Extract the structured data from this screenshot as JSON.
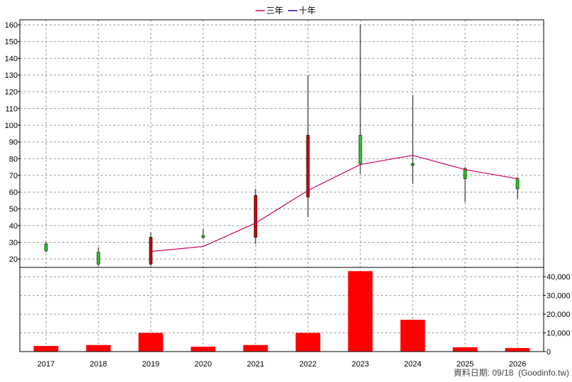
{
  "legend": {
    "series3_label": "三年",
    "series10_label": "十年"
  },
  "footer": {
    "date_label": "資料日期: 09/18",
    "source": "(Goodinfo.tw)"
  },
  "colors": {
    "ma3": "#cc0066",
    "ma10": "#3300aa",
    "candle_up": "#cc0000",
    "candle_down": "#22cc22",
    "volume": "#ff0000",
    "grid": "#999999"
  },
  "chart_data": [
    {
      "type": "candlestick",
      "categories": [
        "2017",
        "2018",
        "2019",
        "2020",
        "2021",
        "2022",
        "2023",
        "2024",
        "2025",
        "2026"
      ],
      "ylim": [
        15,
        163
      ],
      "yticks": [
        20,
        30,
        40,
        50,
        60,
        70,
        80,
        90,
        100,
        110,
        120,
        130,
        140,
        150,
        160
      ],
      "grid": true,
      "ohlc": [
        {
          "open": 29,
          "high": 30,
          "low": 24,
          "close": 25
        },
        {
          "open": 24,
          "high": 27,
          "low": 16,
          "close": 17
        },
        {
          "open": 17,
          "high": 36,
          "low": 16,
          "close": 33
        },
        {
          "open": 34,
          "high": 38,
          "low": 32,
          "close": 33
        },
        {
          "open": 33,
          "high": 62,
          "low": 29,
          "close": 58
        },
        {
          "open": 57,
          "high": 130,
          "low": 45,
          "close": 94
        },
        {
          "open": 94,
          "high": 160,
          "low": 71,
          "close": 77
        },
        {
          "open": 77,
          "high": 118,
          "low": 65,
          "close": 76
        },
        {
          "open": 74,
          "high": 75,
          "low": 54,
          "close": 68
        },
        {
          "open": 68,
          "high": 69,
          "low": 56,
          "close": 62
        }
      ],
      "series": [
        {
          "name": "三年",
          "values": [
            null,
            null,
            24.5,
            27.5,
            41.5,
            61,
            76.5,
            82,
            73.5,
            68
          ]
        },
        {
          "name": "十年",
          "values": [
            null,
            null,
            null,
            null,
            null,
            null,
            null,
            null,
            null,
            null
          ]
        }
      ]
    },
    {
      "type": "bar",
      "categories": [
        "2017",
        "2018",
        "2019",
        "2020",
        "2021",
        "2022",
        "2023",
        "2024",
        "2025",
        "2026"
      ],
      "values": [
        3000,
        3500,
        10000,
        2600,
        3500,
        10000,
        43000,
        17000,
        2300,
        1900
      ],
      "ylim": [
        0,
        45000
      ],
      "yticks": [
        0,
        10000,
        20000,
        30000,
        40000
      ],
      "ytick_labels": [
        "0",
        "10,000",
        "20,000",
        "30,000",
        "40,000"
      ],
      "grid": true
    }
  ]
}
